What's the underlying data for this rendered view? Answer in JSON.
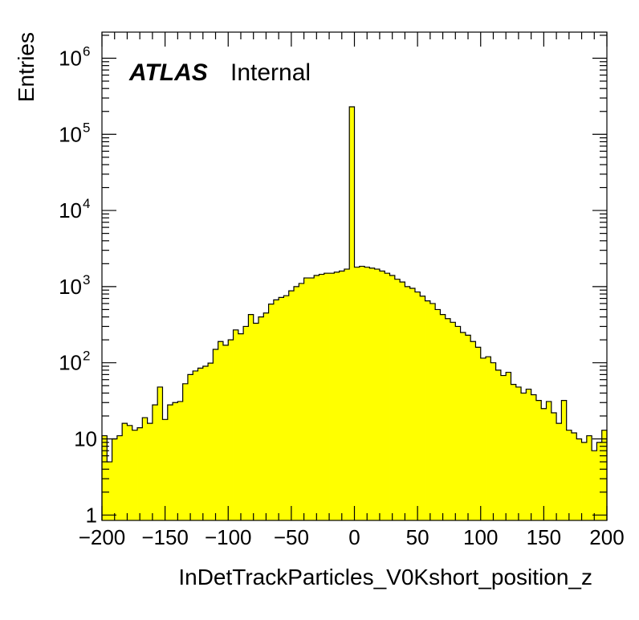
{
  "chart_data": {
    "type": "bar",
    "title": "",
    "xlabel": "InDetTrackParticles_V0Kshort_position_z",
    "ylabel": "Entries",
    "label_bold": "ATLAS",
    "label_normal": "Internal",
    "xlim": [
      -200,
      200
    ],
    "ylim": [
      0.85,
      2200000
    ],
    "log_y": true,
    "grid": false,
    "fill_color": "#ffff00",
    "line_color": "#000000",
    "bin_width": 4,
    "x_ticks": [
      "−200",
      "−150",
      "−100",
      "−50",
      "0",
      "50",
      "100",
      "150",
      "200"
    ],
    "x_tick_values": [
      -200,
      -150,
      -100,
      -50,
      0,
      50,
      100,
      150,
      200
    ],
    "y_ticks": [
      {
        "value": 1,
        "base": "1",
        "exp": ""
      },
      {
        "value": 10,
        "base": "10",
        "exp": ""
      },
      {
        "value": 100,
        "base": "10",
        "exp": "2"
      },
      {
        "value": 1000,
        "base": "10",
        "exp": "3"
      },
      {
        "value": 10000,
        "base": "10",
        "exp": "4"
      },
      {
        "value": 100000,
        "base": "10",
        "exp": "5"
      },
      {
        "value": 1000000,
        "base": "10",
        "exp": "6"
      }
    ],
    "x_bin_low": [
      -200,
      -196,
      -192,
      -188,
      -184,
      -180,
      -176,
      -172,
      -168,
      -164,
      -160,
      -156,
      -152,
      -148,
      -144,
      -140,
      -136,
      -132,
      -128,
      -124,
      -120,
      -116,
      -112,
      -108,
      -104,
      -100,
      -96,
      -92,
      -88,
      -84,
      -80,
      -76,
      -72,
      -68,
      -64,
      -60,
      -56,
      -52,
      -48,
      -44,
      -40,
      -36,
      -32,
      -28,
      -24,
      -20,
      -16,
      -12,
      -8,
      -4,
      0,
      4,
      8,
      12,
      16,
      20,
      24,
      28,
      32,
      36,
      40,
      44,
      48,
      52,
      56,
      60,
      64,
      68,
      72,
      76,
      80,
      84,
      88,
      92,
      96,
      100,
      104,
      108,
      112,
      116,
      120,
      124,
      128,
      132,
      136,
      140,
      144,
      148,
      152,
      156,
      160,
      164,
      168,
      172,
      176,
      180,
      184,
      188,
      192,
      196
    ],
    "values": [
      11,
      5,
      10,
      11,
      16,
      15,
      13,
      14,
      19,
      16,
      28,
      48,
      18,
      28,
      30,
      31,
      53,
      70,
      78,
      85,
      90,
      99,
      150,
      190,
      170,
      200,
      270,
      240,
      300,
      430,
      330,
      400,
      450,
      590,
      670,
      720,
      760,
      880,
      1000,
      1100,
      1300,
      1300,
      1400,
      1450,
      1500,
      1500,
      1550,
      1600,
      1700,
      230000,
      1800,
      1850,
      1800,
      1750,
      1700,
      1600,
      1500,
      1400,
      1250,
      1150,
      1000,
      950,
      850,
      750,
      650,
      600,
      500,
      430,
      380,
      340,
      300,
      250,
      230,
      190,
      160,
      115,
      120,
      100,
      80,
      68,
      75,
      52,
      48,
      40,
      45,
      38,
      32,
      25,
      31,
      22,
      16,
      32,
      13,
      12,
      10,
      9,
      11,
      7,
      9,
      13
    ]
  }
}
